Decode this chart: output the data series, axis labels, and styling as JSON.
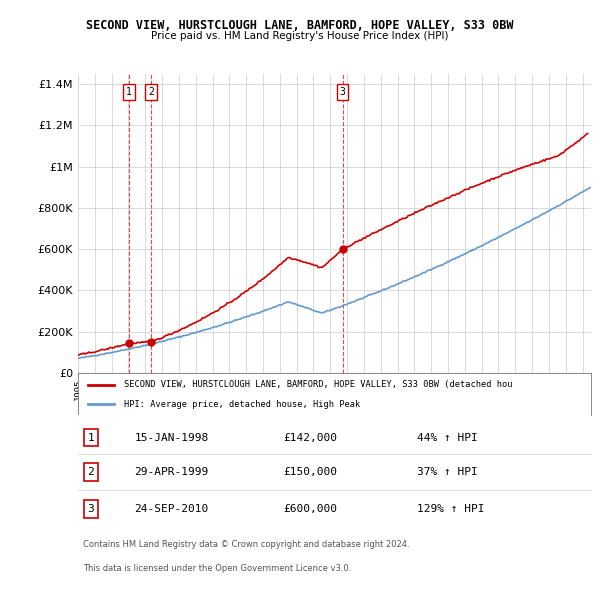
{
  "title": "SECOND VIEW, HURSTCLOUGH LANE, BAMFORD, HOPE VALLEY, S33 0BW",
  "subtitle": "Price paid vs. HM Land Registry's House Price Index (HPI)",
  "ylim": [
    0,
    1450000
  ],
  "yticks": [
    0,
    200000,
    400000,
    600000,
    800000,
    1000000,
    1200000,
    1400000
  ],
  "ytick_labels": [
    "£0",
    "£200K",
    "£400K",
    "£600K",
    "£800K",
    "£1M",
    "£1.2M",
    "£1.4M"
  ],
  "xmin": 1995.0,
  "xmax": 2025.5,
  "legend_line1": "SECOND VIEW, HURSTCLOUGH LANE, BAMFORD, HOPE VALLEY, S33 0BW (detached hou",
  "legend_line2": "HPI: Average price, detached house, High Peak",
  "sales": [
    {
      "num": 1,
      "date": "15-JAN-1998",
      "price": 142000,
      "year": 1998.04,
      "pct": "44%",
      "dir": "↑"
    },
    {
      "num": 2,
      "date": "29-APR-1999",
      "price": 150000,
      "year": 1999.33,
      "pct": "37%",
      "dir": "↑"
    },
    {
      "num": 3,
      "date": "24-SEP-2010",
      "price": 600000,
      "year": 2010.73,
      "pct": "129%",
      "dir": "↑"
    }
  ],
  "footer1": "Contains HM Land Registry data © Crown copyright and database right 2024.",
  "footer2": "This data is licensed under the Open Government Licence v3.0.",
  "red_color": "#cc0000",
  "blue_color": "#6699cc",
  "background": "#ffffff",
  "grid_color": "#cccccc"
}
